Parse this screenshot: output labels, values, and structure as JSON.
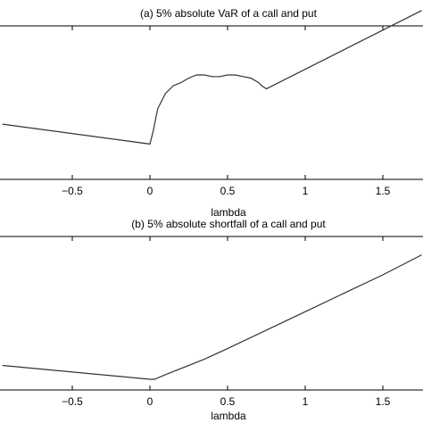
{
  "chart_data": [
    {
      "type": "line",
      "title": "(a) 5% absolute VaR of a call and put",
      "xlabel": "lambda",
      "ylabel": "",
      "xlim": [
        -0.95,
        1.75
      ],
      "ylim": [
        0,
        1
      ],
      "xticks": [
        -0.5,
        0,
        0.5,
        1,
        1.5
      ],
      "xtick_labels": [
        "−0.5",
        "0",
        "0.5",
        "1",
        "1.5"
      ],
      "grid": false,
      "series": [
        {
          "x": [
            -0.95,
            0.0,
            0.02,
            0.05,
            0.1,
            0.15,
            0.2,
            0.25,
            0.3,
            0.35,
            0.4,
            0.45,
            0.5,
            0.55,
            0.6,
            0.65,
            0.7,
            0.72,
            0.75,
            1.75
          ],
          "y": [
            0.36,
            0.23,
            0.31,
            0.46,
            0.56,
            0.61,
            0.63,
            0.66,
            0.68,
            0.68,
            0.67,
            0.67,
            0.68,
            0.68,
            0.67,
            0.66,
            0.63,
            0.61,
            0.59,
            1.1
          ]
        }
      ]
    },
    {
      "type": "line",
      "title": "(b) 5% absolute shortfall of a call and put",
      "xlabel": "lambda",
      "ylabel": "",
      "xlim": [
        -0.95,
        1.75
      ],
      "ylim": [
        0,
        1
      ],
      "xticks": [
        -0.5,
        0,
        0.5,
        1,
        1.5
      ],
      "xtick_labels": [
        "−0.5",
        "0",
        "0.5",
        "1",
        "1.5"
      ],
      "grid": false,
      "series": [
        {
          "x": [
            -0.95,
            0.0,
            0.03,
            0.1,
            0.2,
            0.35,
            0.5,
            0.75,
            1.0,
            1.25,
            1.5,
            1.75
          ],
          "y": [
            0.16,
            0.07,
            0.07,
            0.1,
            0.14,
            0.2,
            0.27,
            0.39,
            0.51,
            0.63,
            0.75,
            0.88
          ]
        }
      ]
    }
  ]
}
